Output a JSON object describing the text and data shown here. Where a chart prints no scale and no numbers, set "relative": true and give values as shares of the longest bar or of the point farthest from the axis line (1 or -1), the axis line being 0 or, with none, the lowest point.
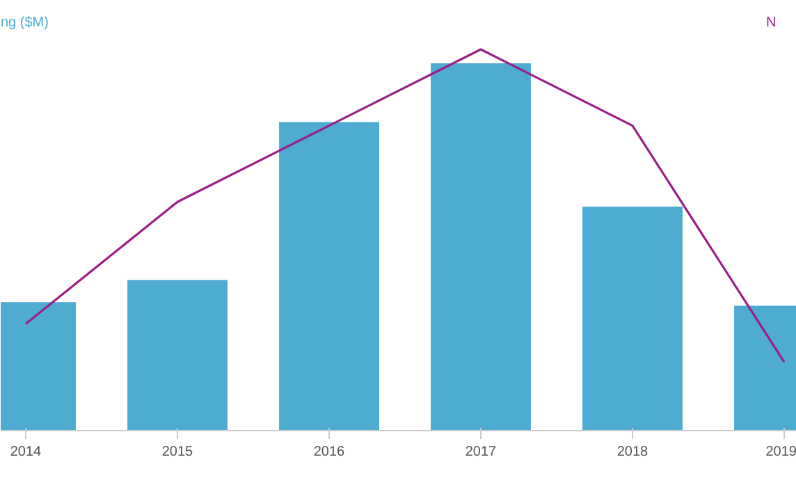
{
  "chart_data": {
    "type": "bar",
    "relative": true,
    "ylabel": "ng ($M)",
    "y2label": "N",
    "categories": [
      "2014",
      "2015",
      "2016",
      "2017",
      "2018",
      "2019"
    ],
    "series": [
      {
        "color": "#4eabd1",
        "values": [
          0.35,
          0.41,
          0.84,
          1.0,
          0.61,
          0.34
        ]
      },
      {
        "type": "line",
        "axis": "y2",
        "color": "#9b1f86",
        "values": [
          0.28,
          0.6,
          0.8,
          1.0,
          0.8,
          0.18
        ]
      }
    ],
    "grid": false,
    "marker": "none"
  }
}
